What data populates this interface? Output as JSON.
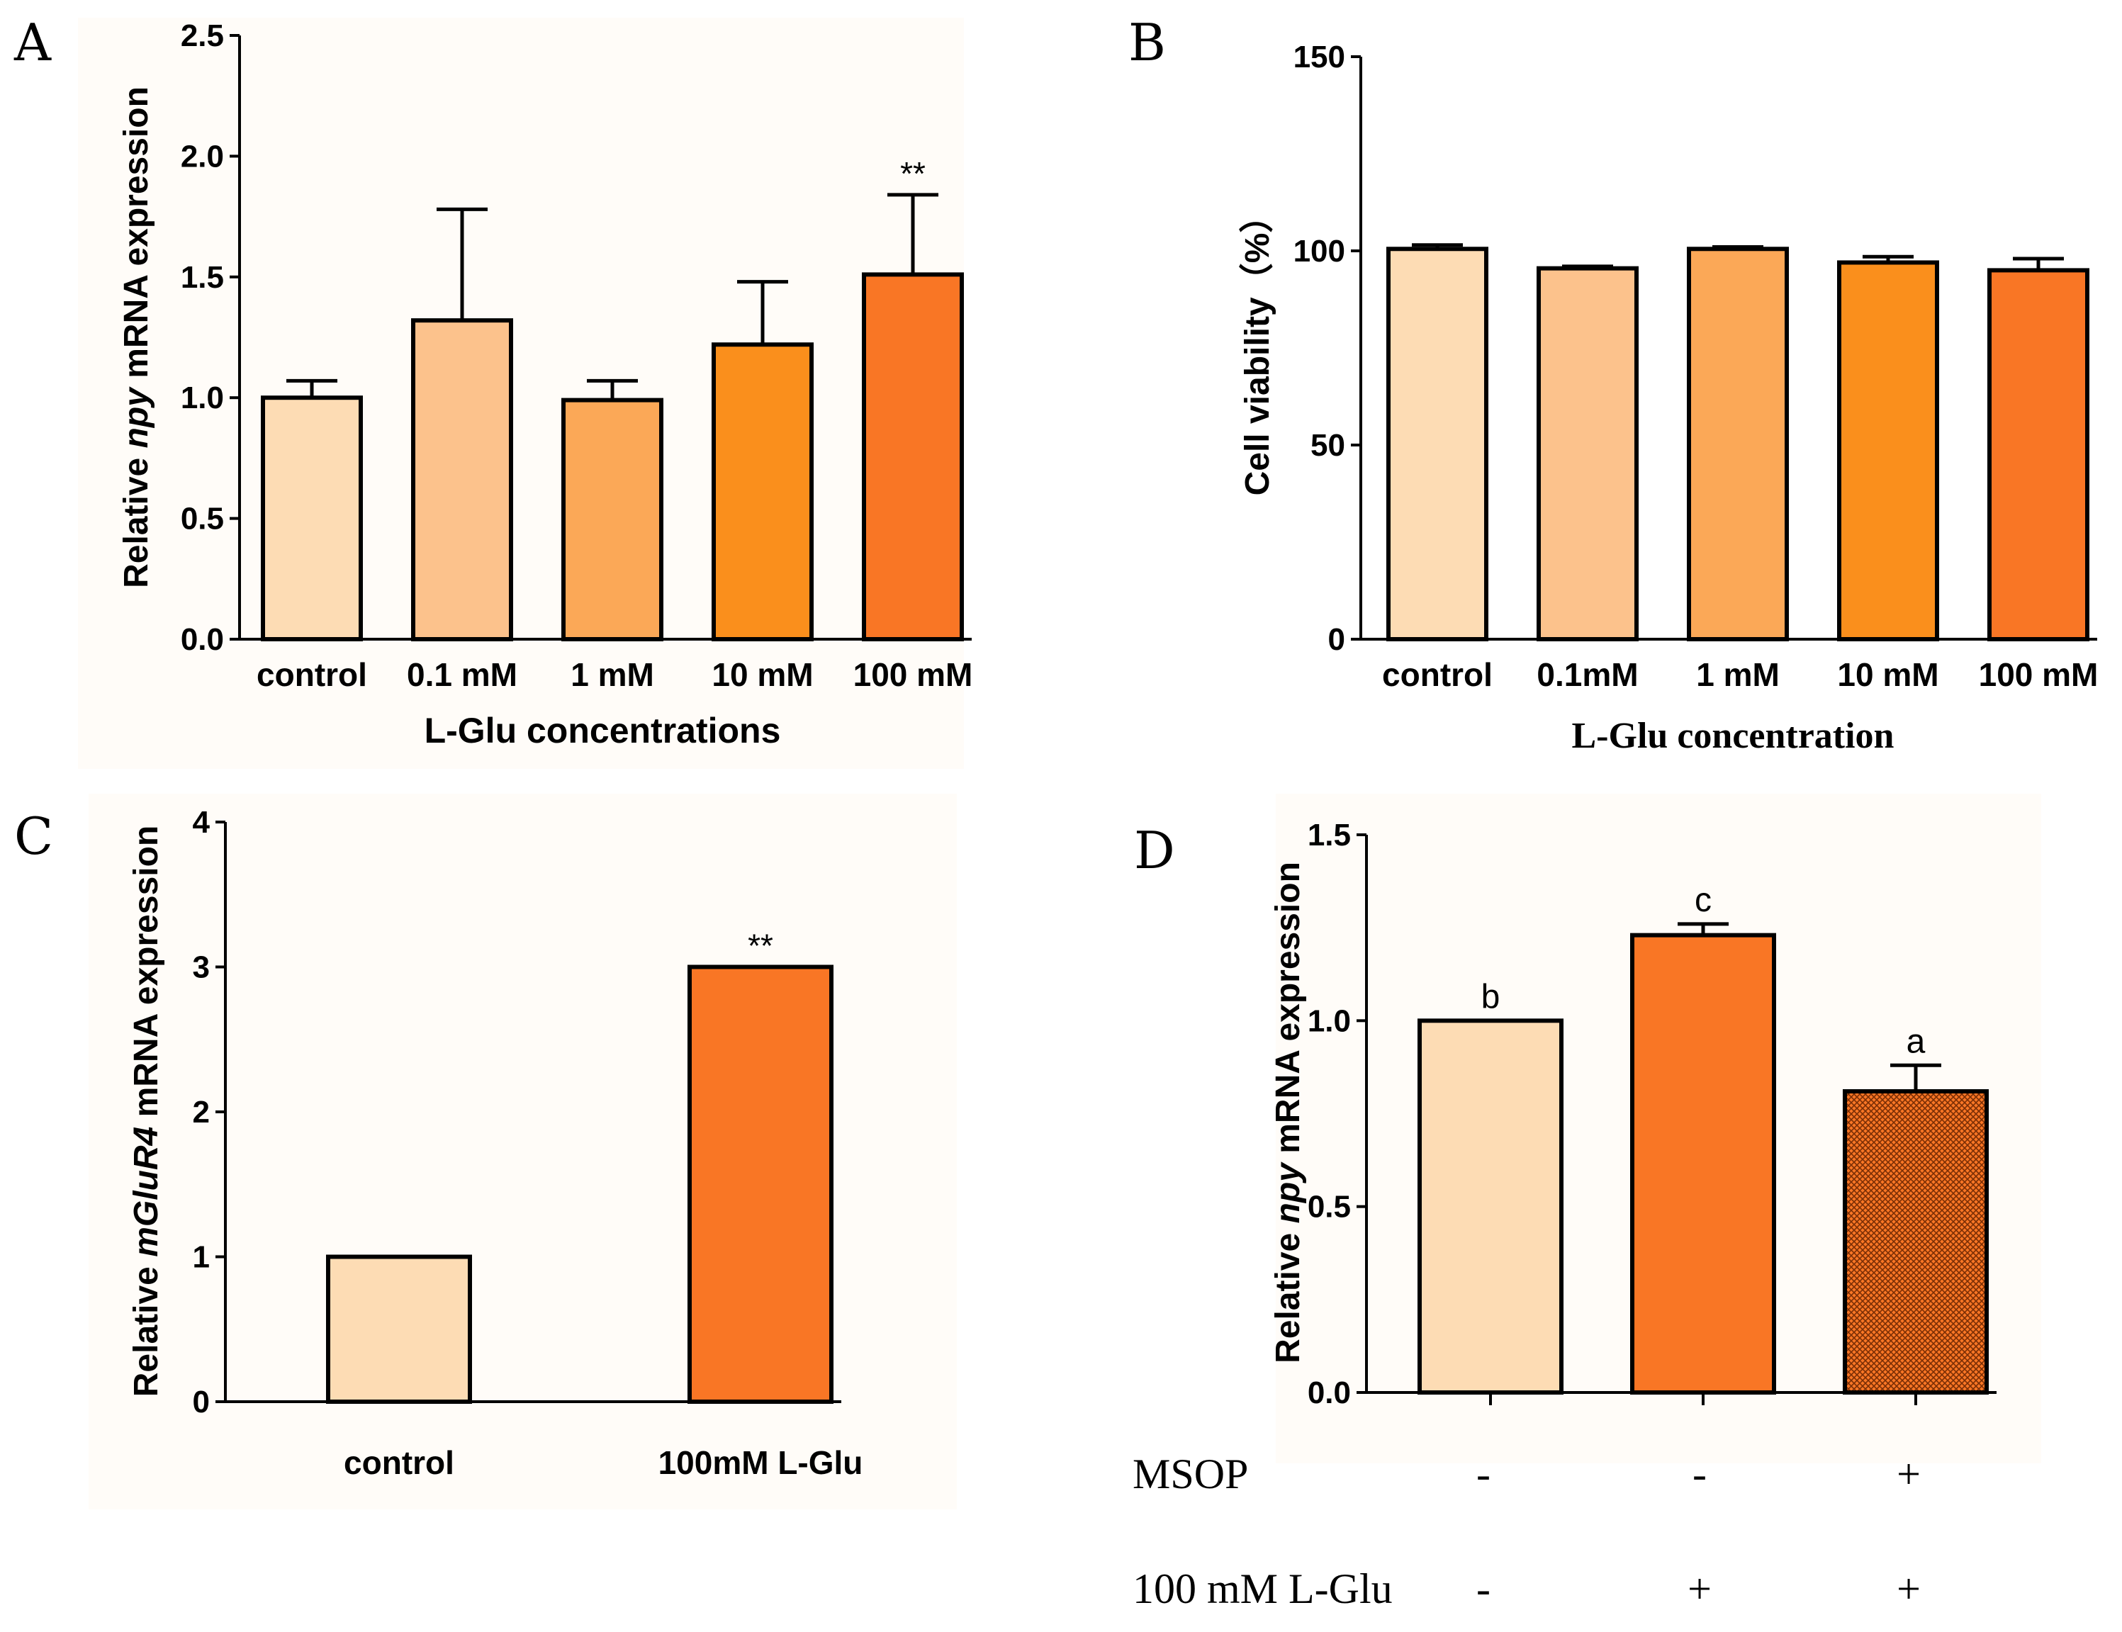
{
  "chart_data": [
    {
      "panel": "A",
      "type": "bar",
      "ylabel_parts": [
        "Relative ",
        "npy",
        " mRNA expression"
      ],
      "xlabel": "L-Glu concentrations",
      "categories": [
        "control",
        "0.1 mM",
        "1 mM",
        "10 mM",
        "100 mM"
      ],
      "values": [
        1.0,
        1.32,
        0.99,
        1.22,
        1.51
      ],
      "errors": [
        0.07,
        0.46,
        0.08,
        0.26,
        0.33
      ],
      "colors": [
        "#fddcb4",
        "#fcc28c",
        "#fba857",
        "#fa8f1c",
        "#f97625"
      ],
      "annotations": [
        "",
        "",
        "",
        "",
        "**"
      ],
      "ylim": [
        0,
        2.5
      ],
      "yticks": [
        0.0,
        0.5,
        1.0,
        1.5,
        2.0,
        2.5
      ],
      "ytick_labels": [
        "0.0",
        "0.5",
        "1.0",
        "1.5",
        "2.0",
        "2.5"
      ]
    },
    {
      "panel": "B",
      "type": "bar",
      "ylabel": "Cell viability（%）",
      "xlabel": "L-Glu concentration",
      "categories": [
        "control",
        "0.1mM",
        "1 mM",
        "10 mM",
        "100 mM"
      ],
      "values": [
        100.5,
        95.5,
        100.5,
        97.0,
        95.0
      ],
      "errors": [
        1.0,
        0.5,
        0.5,
        1.5,
        3.0
      ],
      "colors": [
        "#fddcb4",
        "#fcc28c",
        "#fba857",
        "#fa8f1c",
        "#f97625"
      ],
      "ylim": [
        0,
        150
      ],
      "yticks": [
        0,
        50,
        100,
        150
      ],
      "ytick_labels": [
        "0",
        "50",
        "100",
        "150"
      ]
    },
    {
      "panel": "C",
      "type": "bar",
      "ylabel_parts": [
        "Relative ",
        "mGluR4",
        " mRNA expression"
      ],
      "xlabel": "",
      "categories": [
        "control",
        "100mM L-Glu"
      ],
      "values": [
        1.0,
        3.0
      ],
      "colors": [
        "#fddcb4",
        "#f97625"
      ],
      "annotations": [
        "",
        "**"
      ],
      "ylim": [
        0,
        4
      ],
      "yticks": [
        0,
        1,
        2,
        3,
        4
      ],
      "ytick_labels": [
        "0",
        "1",
        "2",
        "3",
        "4"
      ]
    },
    {
      "panel": "D",
      "type": "bar",
      "ylabel_parts": [
        "Relative ",
        "npy",
        " mRNA expression"
      ],
      "xlabel": "",
      "categories": [
        "",
        "",
        ""
      ],
      "values": [
        1.0,
        1.23,
        0.81
      ],
      "errors": [
        0.0,
        0.03,
        0.07
      ],
      "colors": [
        "#fddcb4",
        "#f97625",
        "#f97625"
      ],
      "patterned": [
        false,
        false,
        true
      ],
      "annotations": [
        "b",
        "c",
        "a"
      ],
      "ylim": [
        0,
        1.5
      ],
      "yticks": [
        0.0,
        0.5,
        1.0,
        1.5
      ],
      "ytick_labels": [
        "0.0",
        "0.5",
        "1.0",
        "1.5"
      ],
      "treatment_rows": [
        {
          "label": "MSOP",
          "values": [
            "-",
            "-",
            "+"
          ]
        },
        {
          "label": "100 mM L-Glu",
          "values": [
            "-",
            "+",
            "+"
          ]
        }
      ]
    }
  ]
}
